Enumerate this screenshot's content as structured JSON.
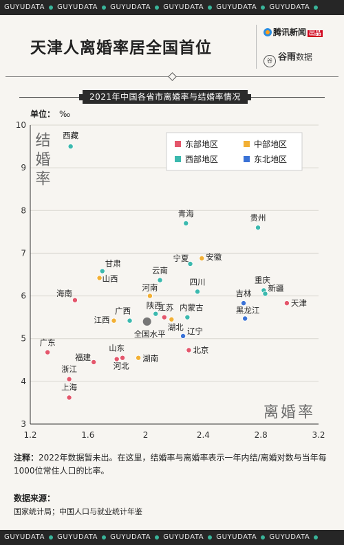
{
  "ticker": {
    "text": "GUYUDATA",
    "repeat": [
      "GUYUDATA",
      "GUYUDATA",
      "GUYUDATA",
      "GUYUDATA",
      "GUYUDATA",
      "GUYUDATA"
    ]
  },
  "header": {
    "title": "天津人离婚率居全国首位",
    "logo_tencent": "腾讯新闻",
    "logo_tencent_badge": "出品",
    "logo_guyu": "谷雨",
    "logo_guyu_suffix": "数据"
  },
  "subtitle": "2021年中国各省市离婚率与结婚率情况",
  "unit_label": "单位：",
  "unit_value": "‰",
  "colors": {
    "east": "#e4566b",
    "central": "#f2b035",
    "west": "#3bb9ae",
    "northeast": "#3a72d6",
    "national": "#777777"
  },
  "chart_data": {
    "type": "scatter",
    "xlabel": "离婚率",
    "ylabel": "结婚率",
    "xlim": [
      1.2,
      3.2
    ],
    "ylim": [
      3,
      10
    ],
    "xticks": [
      "1.2",
      "1.6",
      "2",
      "2.4",
      "2.8",
      "3.2"
    ],
    "yticks": [
      "3",
      "4",
      "5",
      "6",
      "7",
      "8",
      "9",
      "10"
    ],
    "legend_position": "top-right",
    "legend": [
      {
        "key": "east",
        "label": "东部地区"
      },
      {
        "key": "central",
        "label": "中部地区"
      },
      {
        "key": "west",
        "label": "西部地区"
      },
      {
        "key": "northeast",
        "label": "东北地区"
      }
    ],
    "points": [
      {
        "name": "西藏",
        "x": 1.48,
        "y": 9.5,
        "region": "west"
      },
      {
        "name": "青海",
        "x": 2.28,
        "y": 7.7,
        "region": "west"
      },
      {
        "name": "贵州",
        "x": 2.78,
        "y": 7.6,
        "region": "west"
      },
      {
        "name": "宁夏",
        "x": 2.31,
        "y": 6.75,
        "region": "west"
      },
      {
        "name": "安徽",
        "x": 2.39,
        "y": 6.88,
        "region": "central"
      },
      {
        "name": "甘肃",
        "x": 1.7,
        "y": 6.58,
        "region": "west"
      },
      {
        "name": "山西",
        "x": 1.68,
        "y": 6.42,
        "region": "central"
      },
      {
        "name": "云南",
        "x": 2.1,
        "y": 6.37,
        "region": "west"
      },
      {
        "name": "四川",
        "x": 2.36,
        "y": 6.1,
        "region": "west"
      },
      {
        "name": "河南",
        "x": 2.03,
        "y": 6.0,
        "region": "central"
      },
      {
        "name": "海南",
        "x": 1.51,
        "y": 5.9,
        "region": "east"
      },
      {
        "name": "重庆",
        "x": 2.82,
        "y": 6.13,
        "region": "west"
      },
      {
        "name": "新疆",
        "x": 2.83,
        "y": 6.05,
        "region": "west"
      },
      {
        "name": "吉林",
        "x": 2.68,
        "y": 5.83,
        "region": "northeast"
      },
      {
        "name": "天津",
        "x": 2.98,
        "y": 5.83,
        "region": "east"
      },
      {
        "name": "陕西",
        "x": 2.07,
        "y": 5.58,
        "region": "west"
      },
      {
        "name": "广西",
        "x": 1.89,
        "y": 5.42,
        "region": "west"
      },
      {
        "name": "江西",
        "x": 1.78,
        "y": 5.42,
        "region": "central"
      },
      {
        "name": "江苏",
        "x": 2.13,
        "y": 5.5,
        "region": "east"
      },
      {
        "name": "湖北",
        "x": 2.18,
        "y": 5.45,
        "region": "central"
      },
      {
        "name": "内蒙古",
        "x": 2.29,
        "y": 5.5,
        "region": "west"
      },
      {
        "name": "黑龙江",
        "x": 2.69,
        "y": 5.47,
        "region": "northeast"
      },
      {
        "name": "全国水平",
        "x": 2.01,
        "y": 5.4,
        "region": "national"
      },
      {
        "name": "辽宁",
        "x": 2.26,
        "y": 5.06,
        "region": "northeast"
      },
      {
        "name": "北京",
        "x": 2.3,
        "y": 4.73,
        "region": "east"
      },
      {
        "name": "广东",
        "x": 1.32,
        "y": 4.68,
        "region": "east"
      },
      {
        "name": "福建",
        "x": 1.64,
        "y": 4.45,
        "region": "east"
      },
      {
        "name": "山东",
        "x": 1.8,
        "y": 4.52,
        "region": "east"
      },
      {
        "name": "河北",
        "x": 1.84,
        "y": 4.55,
        "region": "east"
      },
      {
        "name": "湖南",
        "x": 1.95,
        "y": 4.55,
        "region": "central"
      },
      {
        "name": "浙江",
        "x": 1.47,
        "y": 4.05,
        "region": "east"
      },
      {
        "name": "上海",
        "x": 1.47,
        "y": 3.62,
        "region": "east"
      }
    ]
  },
  "note": {
    "label": "注释：",
    "text": "2022年数据暂未出。在这里，结婚率与离婚率表示一年内结/离婚对数与当年每1000位常住人口的比率。"
  },
  "source": {
    "label": "数据来源：",
    "text": "国家统计局；中国人口与就业统计年鉴"
  }
}
